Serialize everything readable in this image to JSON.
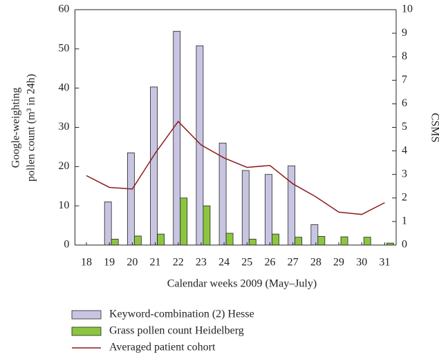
{
  "chart_data": {
    "type": "bar",
    "x_label": "Calendar weeks 2009 (May–July)",
    "y_label": [
      "Google-weighting",
      "pollen count (m³ in 24h)"
    ],
    "y2_label": "CSMS",
    "categories": [
      "18",
      "19",
      "20",
      "21",
      "22",
      "23",
      "24",
      "25",
      "26",
      "27",
      "28",
      "29",
      "30",
      "31"
    ],
    "series": [
      {
        "name": "Keyword-combination (2) Hesse",
        "type": "bar",
        "color": "#c8c5e2",
        "values": [
          0,
          11,
          23.5,
          40.3,
          54.5,
          50.8,
          26,
          19,
          18,
          20.2,
          5.2,
          0,
          0,
          0
        ]
      },
      {
        "name": "Grass pollen count Heidelberg",
        "type": "bar",
        "color": "#8cc63f",
        "values": [
          0,
          1.5,
          2.3,
          2.8,
          12,
          10,
          3,
          1.5,
          2.8,
          2,
          2.2,
          2.1,
          2,
          0.5
        ]
      },
      {
        "name": "Averaged patient cohort",
        "type": "line",
        "axis": "y2",
        "color": "#8b1a1a",
        "values": [
          2.95,
          2.45,
          2.38,
          3.9,
          5.25,
          4.25,
          3.7,
          3.3,
          3.38,
          2.6,
          2.05,
          1.4,
          1.3,
          1.8
        ]
      }
    ],
    "ylim": [
      0,
      60
    ],
    "yticks": [
      0,
      10,
      20,
      30,
      40,
      50,
      60
    ],
    "y2lim": [
      0,
      10
    ],
    "y2ticks": [
      0,
      1,
      2,
      3,
      4,
      5,
      6,
      7,
      8,
      9,
      10
    ]
  }
}
